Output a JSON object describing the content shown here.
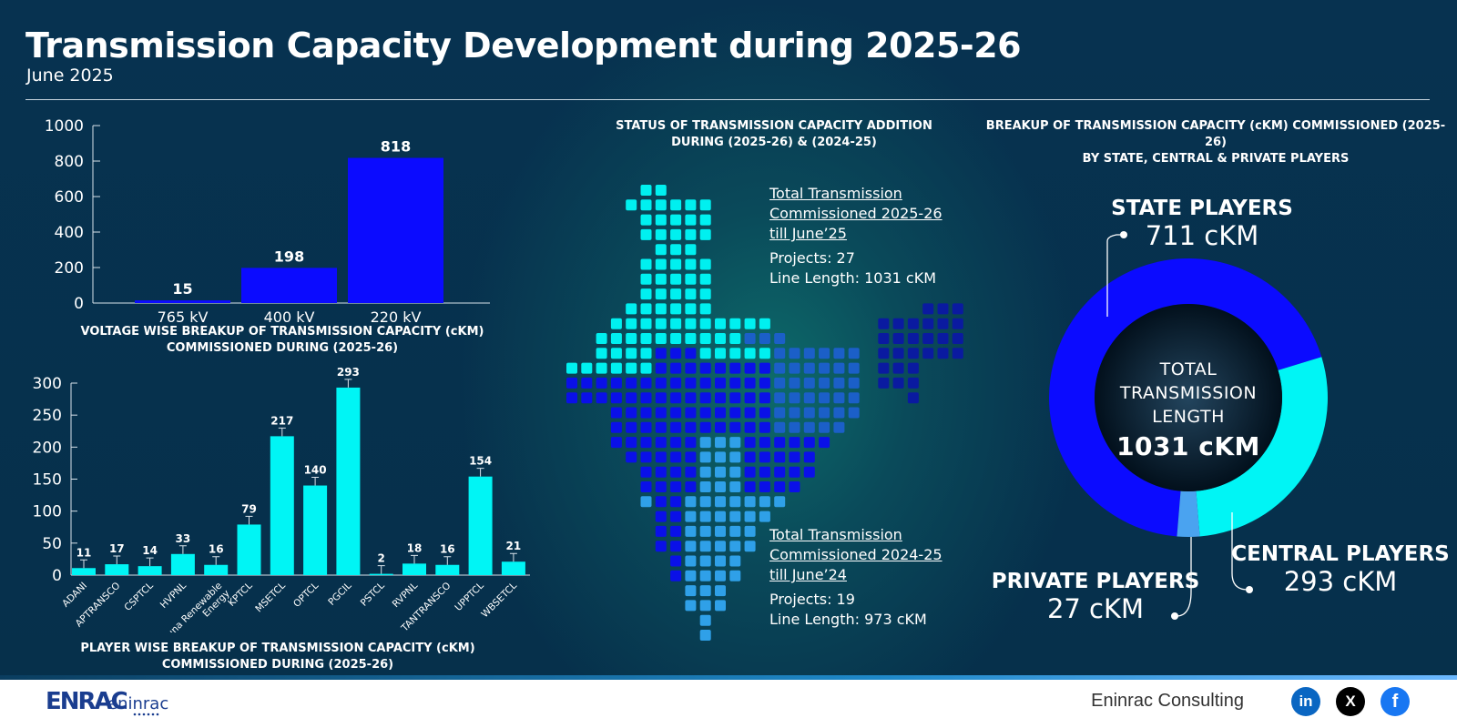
{
  "header": {
    "title": "Transmission Capacity Development during 2025-26",
    "subtitle": "June 2025"
  },
  "voltage_chart": {
    "heading_line1": "VOLTAGE WISE BREAKUP OF TRANSMISSION CAPACITY (cKM)",
    "heading_line2": "COMMISSIONED DURING (2025-26)"
  },
  "player_chart": {
    "heading_line1": "PLAYER WISE BREAKUP OF TRANSMISSION CAPACITY (cKM)",
    "heading_line2": "COMMISSIONED DURING (2025-26)"
  },
  "map_panel": {
    "heading_line1": "STATUS OF TRANSMISSION CAPACITY ADDITION",
    "heading_line2": "DURING (2025-26) & (2024-25)",
    "current": {
      "title_line1": "Total Transmission",
      "title_line2": "Commissioned 2025-26",
      "title_line3": "till June’25",
      "projects": "Projects: 27",
      "length": "Line Length: 1031 cKM"
    },
    "previous": {
      "title_line1": "Total Transmission",
      "title_line2": "Commissioned 2024-25",
      "title_line3": "till June’24",
      "projects": "Projects: 19",
      "length": "Line Length: 973 cKM"
    }
  },
  "donut_panel": {
    "heading_line1": "BREAKUP OF TRANSMISSION CAPACITY (cKM) COMMISSIONED (2025-26)",
    "heading_line2": "BY STATE, CENTRAL & PRIVATE PLAYERS",
    "state_label": "STATE PLAYERS",
    "state_value": "711 cKM",
    "central_label": "CENTRAL PLAYERS",
    "central_value": "293 cKM",
    "private_label": "PRIVATE PLAYERS",
    "private_value": "27 cKM",
    "center_line1": "TOTAL",
    "center_line2": "TRANSMISSION",
    "center_line3": "LENGTH",
    "center_value": "1031 cKM"
  },
  "footer": {
    "company": "Eninrac Consulting",
    "logo_text": "ENRACeninrac",
    "linkedin": "in",
    "x": "X",
    "facebook": "f"
  },
  "colors": {
    "bar_blue": "#0b0bff",
    "bar_cyan": "#00f5f5",
    "private_blue": "#4aa3f0"
  },
  "chart_data": [
    {
      "type": "bar",
      "categories": [
        "765 kV",
        "400 kV",
        "220 kV"
      ],
      "values": [
        15,
        198,
        818
      ],
      "ylim": [
        0,
        1000
      ],
      "yticks": [
        0,
        200,
        400,
        600,
        800,
        1000
      ]
    },
    {
      "type": "bar",
      "categories": [
        "ADANI",
        "APTRANSCO",
        "CSPTCL",
        "HVPNL",
        "Juna Renewable Energy",
        "KPTCL",
        "MSETCL",
        "OPTCL",
        "PGCIL",
        "PSTCL",
        "RVPNL",
        "TANTRANSCO",
        "UPPTCL",
        "WBSETCL"
      ],
      "values": [
        11,
        17,
        14,
        33,
        16,
        79,
        217,
        140,
        293,
        2,
        18,
        16,
        154,
        21
      ],
      "ylim": [
        0,
        300
      ],
      "yticks": [
        0,
        50,
        100,
        150,
        200,
        250,
        300
      ]
    },
    {
      "type": "pie",
      "categories": [
        "STATE PLAYERS",
        "CENTRAL PLAYERS",
        "PRIVATE PLAYERS"
      ],
      "values": [
        711,
        293,
        27
      ],
      "colors": [
        "#0b0bff",
        "#00f5f5",
        "#4aa3f0"
      ]
    }
  ]
}
